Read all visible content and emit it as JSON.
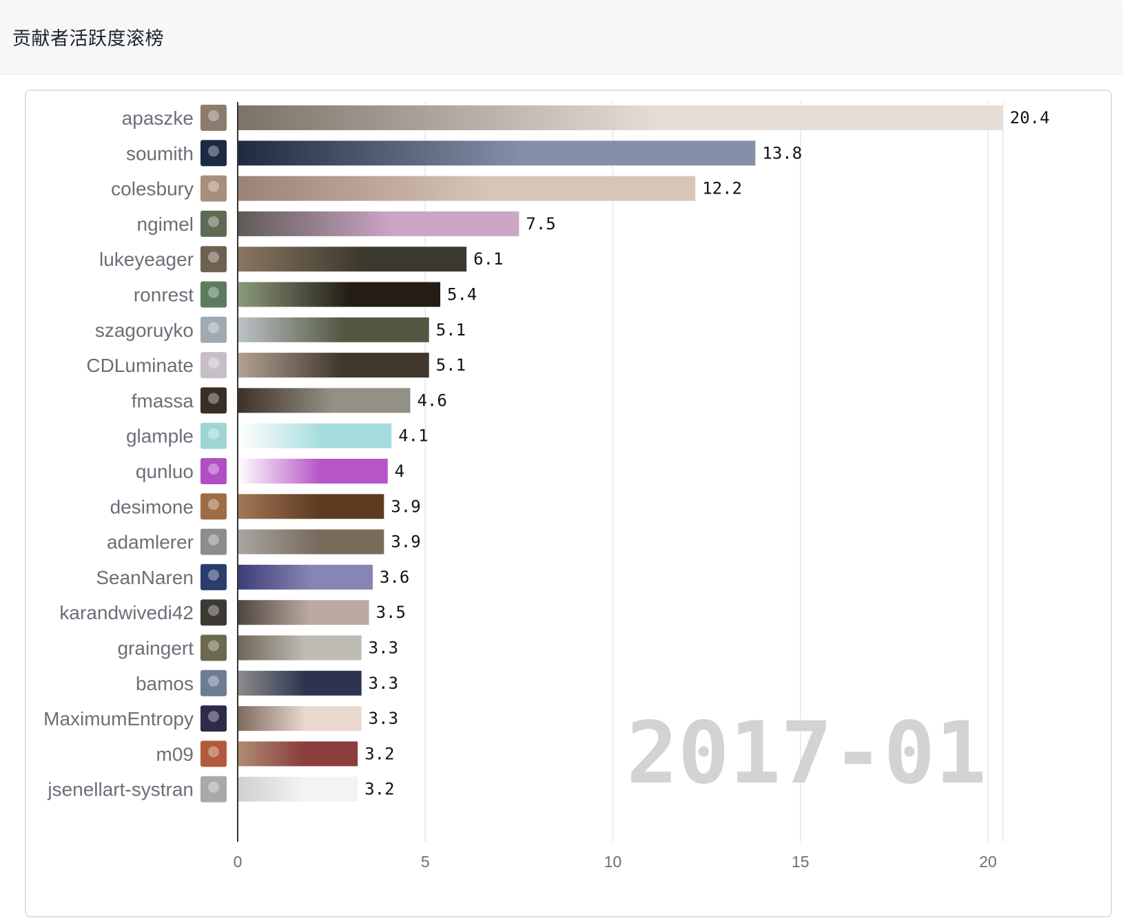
{
  "header": {
    "title": "贡献者活跃度滚榜"
  },
  "chart_data": {
    "type": "bar",
    "orientation": "horizontal",
    "period": "2017-01",
    "categories": [
      "apaszke",
      "soumith",
      "colesbury",
      "ngimel",
      "lukeyeager",
      "ronrest",
      "szagoruyko",
      "CDLuminate",
      "fmassa",
      "glample",
      "qunluo",
      "desimone",
      "adamlerer",
      "SeanNaren",
      "karandwivedi42",
      "graingert",
      "bamos",
      "MaximumEntropy",
      "m09",
      "jsenellart-systran"
    ],
    "values": [
      20.4,
      13.8,
      12.2,
      7.5,
      6.1,
      5.4,
      5.1,
      5.1,
      4.6,
      4.1,
      4,
      3.9,
      3.9,
      3.6,
      3.5,
      3.3,
      3.3,
      3.3,
      3.2,
      3.2
    ],
    "value_labels": [
      "20.4",
      "13.8",
      "12.2",
      "7.5",
      "6.1",
      "5.4",
      "5.1",
      "5.1",
      "4.6",
      "4.1",
      "4",
      "3.9",
      "3.9",
      "3.6",
      "3.5",
      "3.3",
      "3.3",
      "3.3",
      "3.2",
      "3.2"
    ],
    "bar_colors": [
      [
        "#7b7268",
        "#e6ded6"
      ],
      [
        "#1f2a40",
        "#8590a8"
      ],
      [
        "#9a8375",
        "#d8c5b8"
      ],
      [
        "#5e5a55",
        "#cda5c7"
      ],
      [
        "#8a7660",
        "#3b382d"
      ],
      [
        "#8c9a7c",
        "#241d15"
      ],
      [
        "#bcc3c6",
        "#535842"
      ],
      [
        "#b3a293",
        "#40362c"
      ],
      [
        "#3e3028",
        "#939087"
      ],
      [
        "#ffffff",
        "#a6dcdc"
      ],
      [
        "#ffffff",
        "#b655c7"
      ],
      [
        "#a37758",
        "#5e3b20"
      ],
      [
        "#a8a6a1",
        "#796a5c"
      ],
      [
        "#3e3e78",
        "#8586b4"
      ],
      [
        "#4e463e",
        "#bcaaa2"
      ],
      [
        "#6f6659",
        "#bfbcb5"
      ],
      [
        "#8c8c8c",
        "#2c3450"
      ],
      [
        "#7e6b5e",
        "#ead8cf"
      ],
      [
        "#b08c74",
        "#8a3e3e"
      ],
      [
        "#cfcfcf",
        "#f3f3f3"
      ]
    ],
    "avatar_colors": [
      "#8b7c6e",
      "#1d2a44",
      "#a88f7c",
      "#5e6a54",
      "#6d6251",
      "#5b7d5e",
      "#a0aab0",
      "#c6bfc8",
      "#3a2f26",
      "#9fd6d4",
      "#b04fc4",
      "#a06c46",
      "#8a8d8c",
      "#2a3d6e",
      "#3d3a35",
      "#6b6a4e",
      "#6d7c92",
      "#2d2a4a",
      "#b35a3c",
      "#a9a9a9"
    ],
    "xlim": [
      0,
      21.5
    ],
    "x_ticks": [
      0,
      5,
      10,
      15,
      20
    ],
    "x_tick_labels": [
      "0",
      "5",
      "10",
      "15",
      "20"
    ],
    "grid": true
  }
}
